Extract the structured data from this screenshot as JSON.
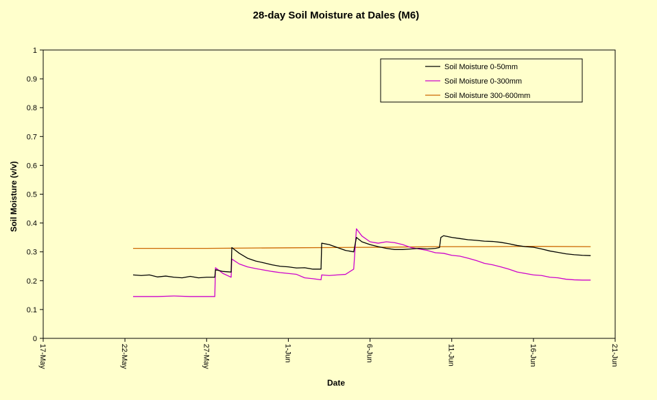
{
  "chart_data": {
    "type": "line",
    "title": "28-day Soil Moisture at Dales (M6)",
    "xlabel": "Date",
    "ylabel": "Soil Moisture  (v/v)",
    "xlim": [
      "2007-05-17",
      "2007-06-21"
    ],
    "ylim": [
      0,
      1
    ],
    "y_ticks": [
      "0",
      "0.1",
      "0.2",
      "0.3",
      "0.4",
      "0.5",
      "0.6",
      "0.7",
      "0.8",
      "0.9",
      "1"
    ],
    "x_ticks": [
      {
        "date": "2007-05-17",
        "label": "17-May"
      },
      {
        "date": "2007-05-22",
        "label": "22-May"
      },
      {
        "date": "2007-05-27",
        "label": "27-May"
      },
      {
        "date": "2007-06-01",
        "label": "1-Jun"
      },
      {
        "date": "2007-06-06",
        "label": "6-Jun"
      },
      {
        "date": "2007-06-11",
        "label": "11-Jun"
      },
      {
        "date": "2007-06-16",
        "label": "16-Jun"
      },
      {
        "date": "2007-06-21",
        "label": "21-Jun"
      }
    ],
    "grid": false,
    "legend_position": "top-right",
    "series": [
      {
        "name": "Soil Moisture 0-50mm",
        "color": "#000000",
        "points": [
          [
            "2007-05-22T12:00",
            0.22
          ],
          [
            "2007-05-23T00:00",
            0.218
          ],
          [
            "2007-05-23T12:00",
            0.22
          ],
          [
            "2007-05-24T00:00",
            0.213
          ],
          [
            "2007-05-24T12:00",
            0.216
          ],
          [
            "2007-05-25T00:00",
            0.212
          ],
          [
            "2007-05-25T12:00",
            0.21
          ],
          [
            "2007-05-26T00:00",
            0.215
          ],
          [
            "2007-05-26T12:00",
            0.21
          ],
          [
            "2007-05-27T00:00",
            0.212
          ],
          [
            "2007-05-27T12:00",
            0.212
          ],
          [
            "2007-05-27T13:00",
            0.238
          ],
          [
            "2007-05-28T00:00",
            0.232
          ],
          [
            "2007-05-28T12:00",
            0.23
          ],
          [
            "2007-05-28T13:00",
            0.315
          ],
          [
            "2007-05-29T00:00",
            0.295
          ],
          [
            "2007-05-29T12:00",
            0.278
          ],
          [
            "2007-05-30T00:00",
            0.268
          ],
          [
            "2007-05-30T12:00",
            0.262
          ],
          [
            "2007-05-31T00:00",
            0.255
          ],
          [
            "2007-05-31T12:00",
            0.25
          ],
          [
            "2007-06-01T00:00",
            0.248
          ],
          [
            "2007-06-01T12:00",
            0.244
          ],
          [
            "2007-06-02T00:00",
            0.245
          ],
          [
            "2007-06-02T12:00",
            0.24
          ],
          [
            "2007-06-03T00:00",
            0.24
          ],
          [
            "2007-06-03T01:00",
            0.33
          ],
          [
            "2007-06-03T12:00",
            0.325
          ],
          [
            "2007-06-04T00:00",
            0.315
          ],
          [
            "2007-06-04T12:00",
            0.305
          ],
          [
            "2007-06-05T00:00",
            0.3
          ],
          [
            "2007-06-05T04:00",
            0.35
          ],
          [
            "2007-06-05T12:00",
            0.335
          ],
          [
            "2007-06-06T00:00",
            0.325
          ],
          [
            "2007-06-06T12:00",
            0.318
          ],
          [
            "2007-06-07T00:00",
            0.312
          ],
          [
            "2007-06-07T12:00",
            0.308
          ],
          [
            "2007-06-08T00:00",
            0.308
          ],
          [
            "2007-06-08T12:00",
            0.31
          ],
          [
            "2007-06-09T00:00",
            0.312
          ],
          [
            "2007-06-09T12:00",
            0.31
          ],
          [
            "2007-06-10T00:00",
            0.312
          ],
          [
            "2007-06-10T06:00",
            0.315
          ],
          [
            "2007-06-10T08:00",
            0.35
          ],
          [
            "2007-06-10T12:00",
            0.356
          ],
          [
            "2007-06-11T00:00",
            0.35
          ],
          [
            "2007-06-11T12:00",
            0.346
          ],
          [
            "2007-06-12T00:00",
            0.342
          ],
          [
            "2007-06-12T12:00",
            0.34
          ],
          [
            "2007-06-13T00:00",
            0.337
          ],
          [
            "2007-06-13T12:00",
            0.336
          ],
          [
            "2007-06-14T00:00",
            0.333
          ],
          [
            "2007-06-14T12:00",
            0.328
          ],
          [
            "2007-06-15T00:00",
            0.322
          ],
          [
            "2007-06-15T12:00",
            0.318
          ],
          [
            "2007-06-16T00:00",
            0.316
          ],
          [
            "2007-06-16T12:00",
            0.31
          ],
          [
            "2007-06-17T00:00",
            0.303
          ],
          [
            "2007-06-17T12:00",
            0.298
          ],
          [
            "2007-06-18T00:00",
            0.293
          ],
          [
            "2007-06-18T12:00",
            0.29
          ],
          [
            "2007-06-19T00:00",
            0.288
          ],
          [
            "2007-06-19T12:00",
            0.287
          ]
        ]
      },
      {
        "name": "Soil Moisture 0-300mm",
        "color": "#cc00cc",
        "points": [
          [
            "2007-05-22T12:00",
            0.145
          ],
          [
            "2007-05-24T00:00",
            0.145
          ],
          [
            "2007-05-25T00:00",
            0.147
          ],
          [
            "2007-05-26T00:00",
            0.145
          ],
          [
            "2007-05-27T12:00",
            0.145
          ],
          [
            "2007-05-27T13:00",
            0.245
          ],
          [
            "2007-05-28T00:00",
            0.225
          ],
          [
            "2007-05-28T12:00",
            0.212
          ],
          [
            "2007-05-28T13:00",
            0.275
          ],
          [
            "2007-05-29T00:00",
            0.258
          ],
          [
            "2007-05-29T12:00",
            0.248
          ],
          [
            "2007-05-30T00:00",
            0.242
          ],
          [
            "2007-05-30T12:00",
            0.237
          ],
          [
            "2007-05-31T00:00",
            0.232
          ],
          [
            "2007-05-31T12:00",
            0.228
          ],
          [
            "2007-06-01T00:00",
            0.225
          ],
          [
            "2007-06-01T12:00",
            0.222
          ],
          [
            "2007-06-02T00:00",
            0.21
          ],
          [
            "2007-06-02T12:00",
            0.207
          ],
          [
            "2007-06-03T00:00",
            0.203
          ],
          [
            "2007-06-03T01:00",
            0.22
          ],
          [
            "2007-06-03T12:00",
            0.218
          ],
          [
            "2007-06-04T00:00",
            0.22
          ],
          [
            "2007-06-04T12:00",
            0.222
          ],
          [
            "2007-06-05T00:00",
            0.24
          ],
          [
            "2007-06-05T04:00",
            0.38
          ],
          [
            "2007-06-05T12:00",
            0.355
          ],
          [
            "2007-06-06T00:00",
            0.335
          ],
          [
            "2007-06-06T12:00",
            0.33
          ],
          [
            "2007-06-07T00:00",
            0.335
          ],
          [
            "2007-06-07T12:00",
            0.332
          ],
          [
            "2007-06-08T00:00",
            0.325
          ],
          [
            "2007-06-08T12:00",
            0.315
          ],
          [
            "2007-06-09T00:00",
            0.31
          ],
          [
            "2007-06-09T12:00",
            0.305
          ],
          [
            "2007-06-10T00:00",
            0.297
          ],
          [
            "2007-06-10T12:00",
            0.295
          ],
          [
            "2007-06-11T00:00",
            0.288
          ],
          [
            "2007-06-11T12:00",
            0.285
          ],
          [
            "2007-06-12T00:00",
            0.278
          ],
          [
            "2007-06-12T12:00",
            0.27
          ],
          [
            "2007-06-13T00:00",
            0.26
          ],
          [
            "2007-06-13T12:00",
            0.255
          ],
          [
            "2007-06-14T00:00",
            0.248
          ],
          [
            "2007-06-14T12:00",
            0.24
          ],
          [
            "2007-06-15T00:00",
            0.23
          ],
          [
            "2007-06-15T12:00",
            0.225
          ],
          [
            "2007-06-16T00:00",
            0.22
          ],
          [
            "2007-06-16T12:00",
            0.218
          ],
          [
            "2007-06-17T00:00",
            0.212
          ],
          [
            "2007-06-17T12:00",
            0.21
          ],
          [
            "2007-06-18T00:00",
            0.205
          ],
          [
            "2007-06-18T12:00",
            0.203
          ],
          [
            "2007-06-19T00:00",
            0.202
          ],
          [
            "2007-06-19T12:00",
            0.202
          ]
        ]
      },
      {
        "name": "Soil Moisture 300-600mm",
        "color": "#cc6600",
        "points": [
          [
            "2007-05-22T12:00",
            0.312
          ],
          [
            "2007-05-25T00:00",
            0.312
          ],
          [
            "2007-05-27T00:00",
            0.312
          ],
          [
            "2007-05-29T00:00",
            0.313
          ],
          [
            "2007-06-01T00:00",
            0.314
          ],
          [
            "2007-06-04T00:00",
            0.315
          ],
          [
            "2007-06-07T00:00",
            0.316
          ],
          [
            "2007-06-10T00:00",
            0.318
          ],
          [
            "2007-06-13T00:00",
            0.318
          ],
          [
            "2007-06-16T00:00",
            0.319
          ],
          [
            "2007-06-19T12:00",
            0.318
          ]
        ]
      }
    ]
  }
}
